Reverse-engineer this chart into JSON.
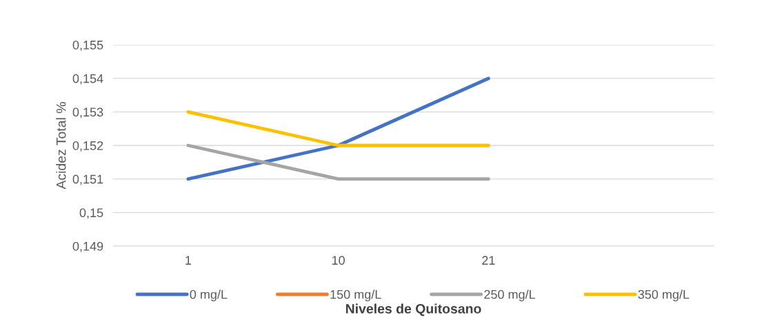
{
  "chart_data": {
    "type": "line",
    "xlabel": "Niveles de Quitosano",
    "ylabel": "Acidez Total %",
    "categories": [
      "1",
      "10",
      "21",
      null
    ],
    "series": [
      {
        "name": "0 mg/L",
        "color": "#4472c4",
        "values": [
          0.151,
          0.152,
          0.154,
          null
        ]
      },
      {
        "name": "150 mg/L",
        "color": "#ed7d31",
        "values": [
          null,
          null,
          null,
          null
        ]
      },
      {
        "name": "250 mg/L",
        "color": "#a5a5a5",
        "values": [
          0.152,
          0.151,
          0.151,
          null
        ]
      },
      {
        "name": "350 mg/L",
        "color": "#ffc000",
        "values": [
          0.153,
          0.152,
          0.152,
          null
        ]
      }
    ],
    "ylim": [
      0.149,
      0.155
    ],
    "yticks": [
      {
        "value": 0.149,
        "label": "0,149"
      },
      {
        "value": 0.15,
        "label": "0,15"
      },
      {
        "value": 0.151,
        "label": "0,151"
      },
      {
        "value": 0.152,
        "label": "0,152"
      },
      {
        "value": 0.153,
        "label": "0,153"
      },
      {
        "value": 0.154,
        "label": "0,154"
      },
      {
        "value": 0.155,
        "label": "0,155"
      }
    ],
    "grid": "y",
    "legend": "bottom",
    "marker": "none",
    "line_style": "solid"
  }
}
